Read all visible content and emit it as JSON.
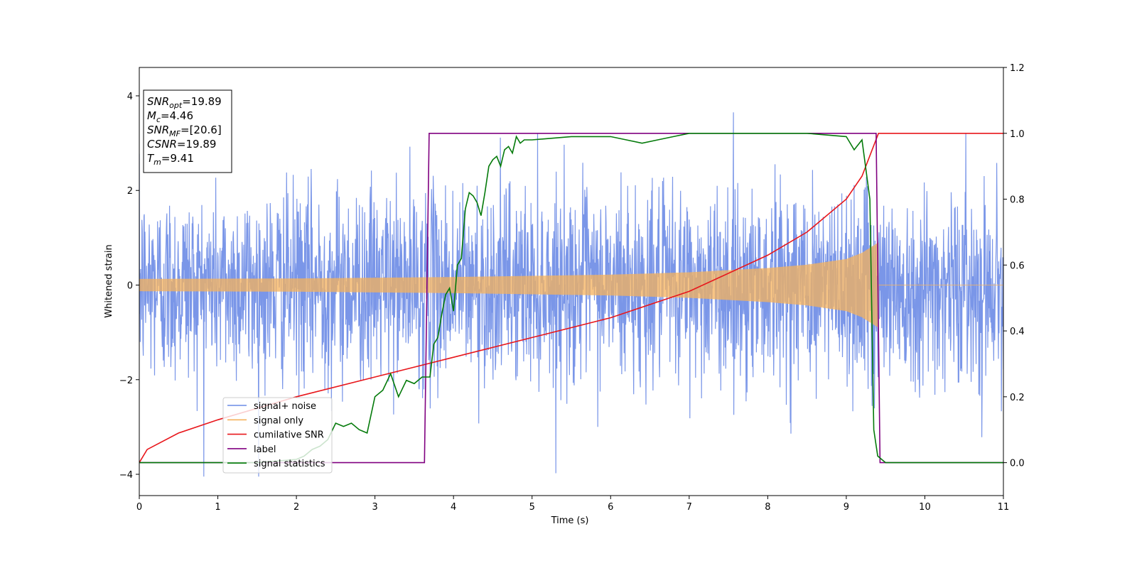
{
  "chart_data": {
    "type": "line",
    "title": "",
    "xlabel": "Time (s)",
    "ylabel": "Whitened strain",
    "y2label": "",
    "xlim": [
      0,
      11
    ],
    "ylim": [
      -4.45,
      4.6
    ],
    "y2lim": [
      -0.1,
      1.2
    ],
    "xticks": [
      0,
      1,
      2,
      3,
      4,
      5,
      6,
      7,
      8,
      9,
      10,
      11
    ],
    "yticks": [
      -4,
      -2,
      0,
      2,
      4
    ],
    "y2ticks": [
      0.0,
      0.2,
      0.4,
      0.6,
      0.8,
      1.0,
      1.2
    ],
    "legend_position": "lower-left",
    "stats_box": [
      {
        "base": "SNR",
        "sub": "opt",
        "value": "=19.89"
      },
      {
        "base": "M",
        "sub": "c",
        "value": "=4.46"
      },
      {
        "base": "SNR",
        "sub": "MF",
        "value": "=[20.6]"
      },
      {
        "base": "CSNR",
        "sub": "",
        "value": "=19.89"
      },
      {
        "base": "T",
        "sub": "m",
        "value": "=9.41"
      }
    ],
    "series": [
      {
        "name": "signal+ noise",
        "axis": "left",
        "color": "#6b8be6",
        "kind": "noise",
        "noise_std": 1.0,
        "approx_range": [
          -4.05,
          4.18
        ],
        "x_range": [
          0,
          11
        ]
      },
      {
        "name": "signal only",
        "axis": "left",
        "color": "#f5b25c",
        "kind": "chirp",
        "x_range": [
          0,
          11
        ],
        "merger_time": 9.41,
        "envelope": {
          "x": [
            0,
            2,
            4,
            6,
            7,
            8,
            8.5,
            9,
            9.2,
            9.41
          ],
          "y": [
            0.13,
            0.14,
            0.17,
            0.22,
            0.27,
            0.36,
            0.43,
            0.55,
            0.68,
            0.9
          ]
        }
      },
      {
        "name": "cumilative SNR",
        "axis": "right",
        "color": "#e8161b",
        "x": [
          0,
          0.1,
          0.5,
          1,
          2,
          3,
          4,
          5,
          6,
          7,
          8,
          8.5,
          9,
          9.2,
          9.41,
          11
        ],
        "y": [
          0.0,
          0.04,
          0.09,
          0.13,
          0.2,
          0.26,
          0.32,
          0.38,
          0.44,
          0.52,
          0.63,
          0.7,
          0.8,
          0.87,
          1.0,
          1.0
        ]
      },
      {
        "name": "label",
        "axis": "right",
        "color": "#800080",
        "x": [
          0,
          3.63,
          3.69,
          9.38,
          9.43,
          11
        ],
        "y": [
          0,
          0,
          1,
          1,
          0,
          0
        ]
      },
      {
        "name": "signal statistics",
        "axis": "right",
        "color": "#047a0a",
        "x": [
          0,
          1.5,
          2.0,
          2.1,
          2.2,
          2.3,
          2.4,
          2.5,
          2.6,
          2.7,
          2.8,
          2.9,
          3.0,
          3.1,
          3.2,
          3.3,
          3.4,
          3.5,
          3.6,
          3.7,
          3.75,
          3.8,
          3.85,
          3.9,
          3.95,
          4.0,
          4.05,
          4.1,
          4.15,
          4.2,
          4.25,
          4.3,
          4.35,
          4.4,
          4.45,
          4.5,
          4.55,
          4.6,
          4.65,
          4.7,
          4.75,
          4.8,
          4.85,
          4.9,
          5.0,
          5.5,
          6.0,
          6.2,
          6.4,
          6.6,
          6.8,
          7.0,
          7.5,
          8.0,
          8.5,
          9.0,
          9.1,
          9.2,
          9.3,
          9.35,
          9.4,
          9.45,
          9.5,
          9.7,
          11
        ],
        "y": [
          0.0,
          0.0,
          0.01,
          0.02,
          0.04,
          0.05,
          0.07,
          0.12,
          0.11,
          0.12,
          0.1,
          0.09,
          0.2,
          0.22,
          0.27,
          0.2,
          0.25,
          0.24,
          0.26,
          0.26,
          0.36,
          0.38,
          0.45,
          0.51,
          0.53,
          0.46,
          0.6,
          0.62,
          0.77,
          0.82,
          0.81,
          0.79,
          0.75,
          0.82,
          0.9,
          0.92,
          0.93,
          0.9,
          0.95,
          0.96,
          0.94,
          0.99,
          0.97,
          0.98,
          0.98,
          0.99,
          0.99,
          0.98,
          0.97,
          0.98,
          0.99,
          1.0,
          1.0,
          1.0,
          1.0,
          0.99,
          0.95,
          0.98,
          0.8,
          0.1,
          0.02,
          0.01,
          0.0,
          0.0,
          0.0
        ]
      }
    ]
  }
}
